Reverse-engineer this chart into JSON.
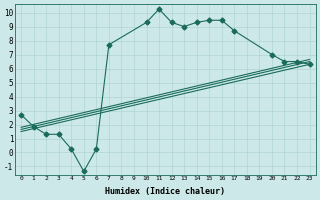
{
  "xlabel": "Humidex (Indice chaleur)",
  "bg_color": "#cce8e8",
  "grid_color": "#b0d4d4",
  "line_color": "#1a6b5a",
  "xlim": [
    -0.5,
    23.5
  ],
  "ylim": [
    -1.6,
    10.6
  ],
  "xticks": [
    0,
    1,
    2,
    3,
    4,
    5,
    6,
    7,
    8,
    9,
    10,
    11,
    12,
    13,
    14,
    15,
    16,
    17,
    18,
    19,
    20,
    21,
    22,
    23
  ],
  "yticks": [
    -1,
    0,
    1,
    2,
    3,
    4,
    5,
    6,
    7,
    8,
    9,
    10
  ],
  "line1_x": [
    0,
    1,
    2,
    3,
    4,
    5,
    6,
    7,
    10,
    11,
    12,
    13,
    14,
    15,
    16,
    17,
    20,
    21,
    22,
    23
  ],
  "line1_y": [
    2.7,
    1.85,
    1.3,
    1.3,
    0.25,
    -1.35,
    0.25,
    7.7,
    9.3,
    10.25,
    9.3,
    9.0,
    9.3,
    9.45,
    9.45,
    8.7,
    7.0,
    6.5,
    6.5,
    6.3
  ],
  "line2_x": [
    0,
    23
  ],
  "line2_y": [
    1.5,
    6.3
  ],
  "line3_x": [
    0,
    23
  ],
  "line3_y": [
    1.65,
    6.5
  ],
  "line4_x": [
    0,
    23
  ],
  "line4_y": [
    1.8,
    6.65
  ],
  "markersize": 2.5,
  "linewidth": 0.8
}
